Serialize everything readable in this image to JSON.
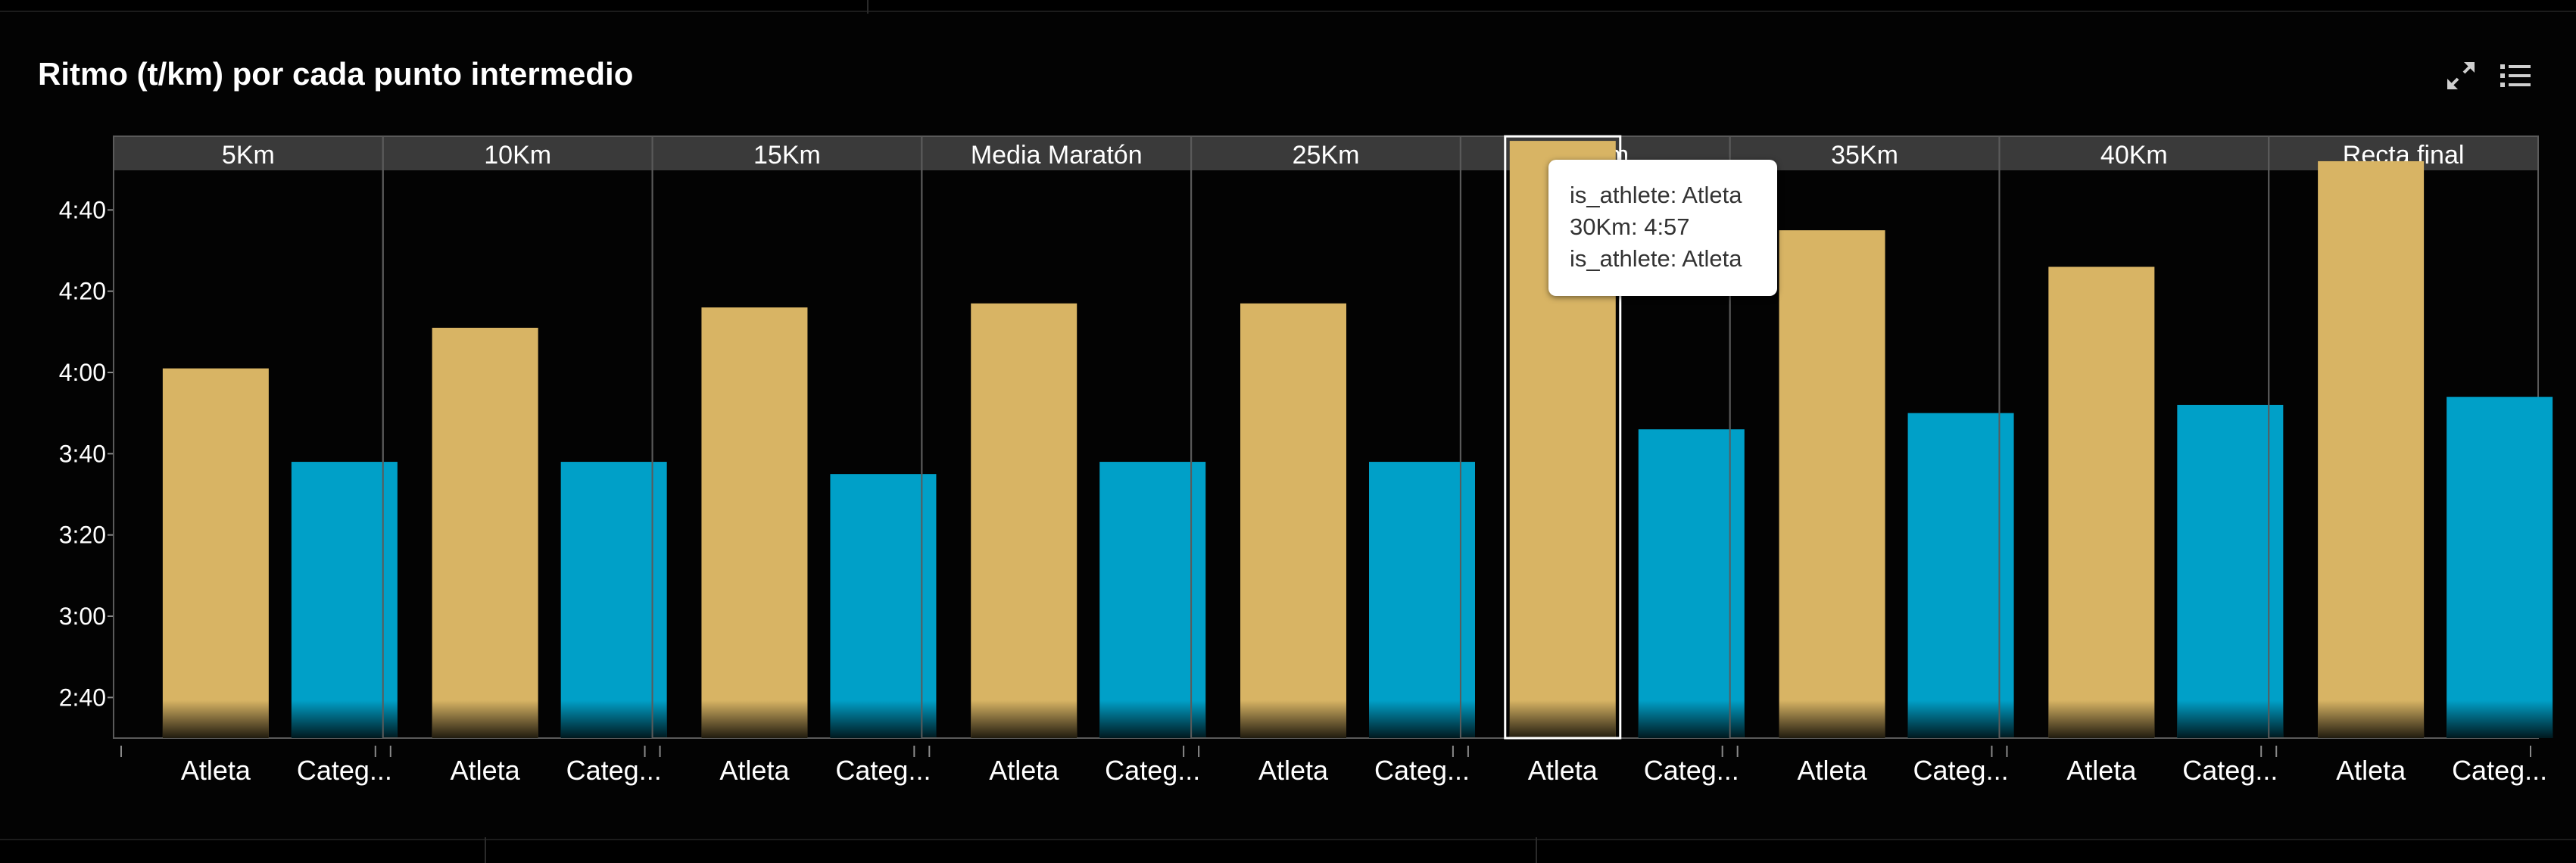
{
  "header": {
    "title": "Ritmo (t/km) por cada punto intermedio",
    "icons": [
      "expand-icon",
      "legend-list-icon"
    ]
  },
  "colors": {
    "background": "#030303",
    "atleta": "#d8b464",
    "categoria": "#00a0c8",
    "facet_header": "#3a3a3a",
    "axis_text": "#ffffff"
  },
  "tooltip": {
    "line1": "is_athlete: Atleta",
    "line2": "30Km: 4:57",
    "line3": "is_athlete: Atleta"
  },
  "chart_data": {
    "type": "bar",
    "title": "Ritmo (t/km) por cada punto intermedio",
    "xlabel": "",
    "ylabel": "",
    "facets": [
      "5Km",
      "10Km",
      "15Km",
      "Media Maratón",
      "25Km",
      "30Km",
      "35Km",
      "40Km",
      "Recta final"
    ],
    "categories": [
      "Atleta",
      "Categ..."
    ],
    "y_unit": "min:sec per km",
    "y_ticks": [
      "2:40",
      "3:00",
      "3:20",
      "3:40",
      "4:00",
      "4:20",
      "4:40"
    ],
    "ylim_seconds": [
      150,
      300
    ],
    "series": [
      {
        "name": "Atleta",
        "color": "#d8b464",
        "values_label": [
          "4:01",
          "4:11",
          "4:16",
          "4:17",
          "4:17",
          "4:57",
          "4:35",
          "4:26",
          "4:52"
        ],
        "values_seconds": [
          241,
          251,
          256,
          257,
          257,
          297,
          275,
          266,
          292
        ]
      },
      {
        "name": "Categ...",
        "color": "#00a0c8",
        "values_label": [
          "3:38",
          "3:38",
          "3:35",
          "3:38",
          "3:38",
          "3:46",
          "3:50",
          "3:52",
          "3:54"
        ],
        "values_seconds": [
          218,
          218,
          215,
          218,
          218,
          226,
          230,
          232,
          234
        ]
      }
    ],
    "highlighted": {
      "facet": "30Km",
      "category": "Atleta"
    },
    "grid": false,
    "legend": "none"
  }
}
